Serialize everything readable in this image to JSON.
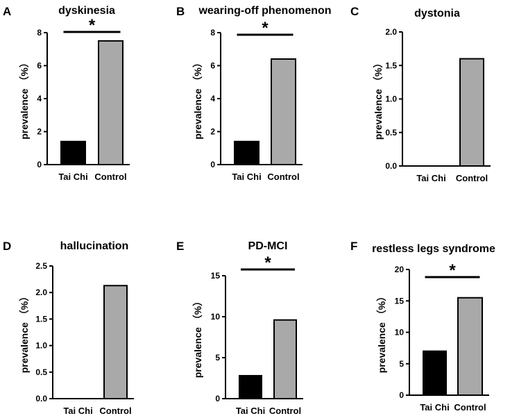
{
  "figure": {
    "colors": {
      "tai_chi": "#000000",
      "control": "#a9a9a9",
      "axis": "#000000"
    }
  },
  "chart_data": [
    {
      "type": "bar",
      "panel": "A",
      "title": "dyskinesia",
      "ylabel": "prevalence （%）",
      "categories": [
        "Tai Chi",
        "Control"
      ],
      "values": [
        1.4,
        7.5
      ],
      "ylim": [
        0,
        8
      ],
      "yticks": [
        "0",
        "2",
        "4",
        "6",
        "8"
      ],
      "significance": "*"
    },
    {
      "type": "bar",
      "panel": "B",
      "title": "wearing-off phenomenon",
      "ylabel": "prevalence （%）",
      "categories": [
        "Tai Chi",
        "Control"
      ],
      "values": [
        1.4,
        6.4
      ],
      "ylim": [
        0,
        8
      ],
      "yticks": [
        "0",
        "2",
        "4",
        "6",
        "8"
      ],
      "significance": "*"
    },
    {
      "type": "bar",
      "panel": "C",
      "title": "dystonia",
      "ylabel": "prevalence （%）",
      "categories": [
        "Tai Chi",
        "Control"
      ],
      "values": [
        0,
        1.6
      ],
      "ylim": [
        0,
        2
      ],
      "yticks": [
        "0.0",
        "0.5",
        "1.0",
        "1.5",
        "2.0"
      ],
      "significance": ""
    },
    {
      "type": "bar",
      "panel": "D",
      "title": "hallucination",
      "ylabel": "prevalence （%）",
      "categories": [
        "Tai Chi",
        "Control"
      ],
      "values": [
        0,
        2.13
      ],
      "ylim": [
        0,
        2.5
      ],
      "yticks": [
        "0.0",
        "0.5",
        "1.0",
        "1.5",
        "2.0",
        "2.5"
      ],
      "significance": ""
    },
    {
      "type": "bar",
      "panel": "E",
      "title": "PD-MCI",
      "ylabel": "prevalence （%）",
      "categories": [
        "Tai Chi",
        "Control"
      ],
      "values": [
        2.8,
        9.6
      ],
      "ylim": [
        0,
        15
      ],
      "yticks": [
        "0",
        "5",
        "10",
        "15"
      ],
      "significance": "*"
    },
    {
      "type": "bar",
      "panel": "F",
      "title": "restless legs syndrome",
      "ylabel": "prevalence （%）",
      "categories": [
        "Tai Chi",
        "Control"
      ],
      "values": [
        7.0,
        15.5
      ],
      "ylim": [
        0,
        20
      ],
      "yticks": [
        "0",
        "5",
        "10",
        "15",
        "20"
      ],
      "significance": "*"
    }
  ]
}
